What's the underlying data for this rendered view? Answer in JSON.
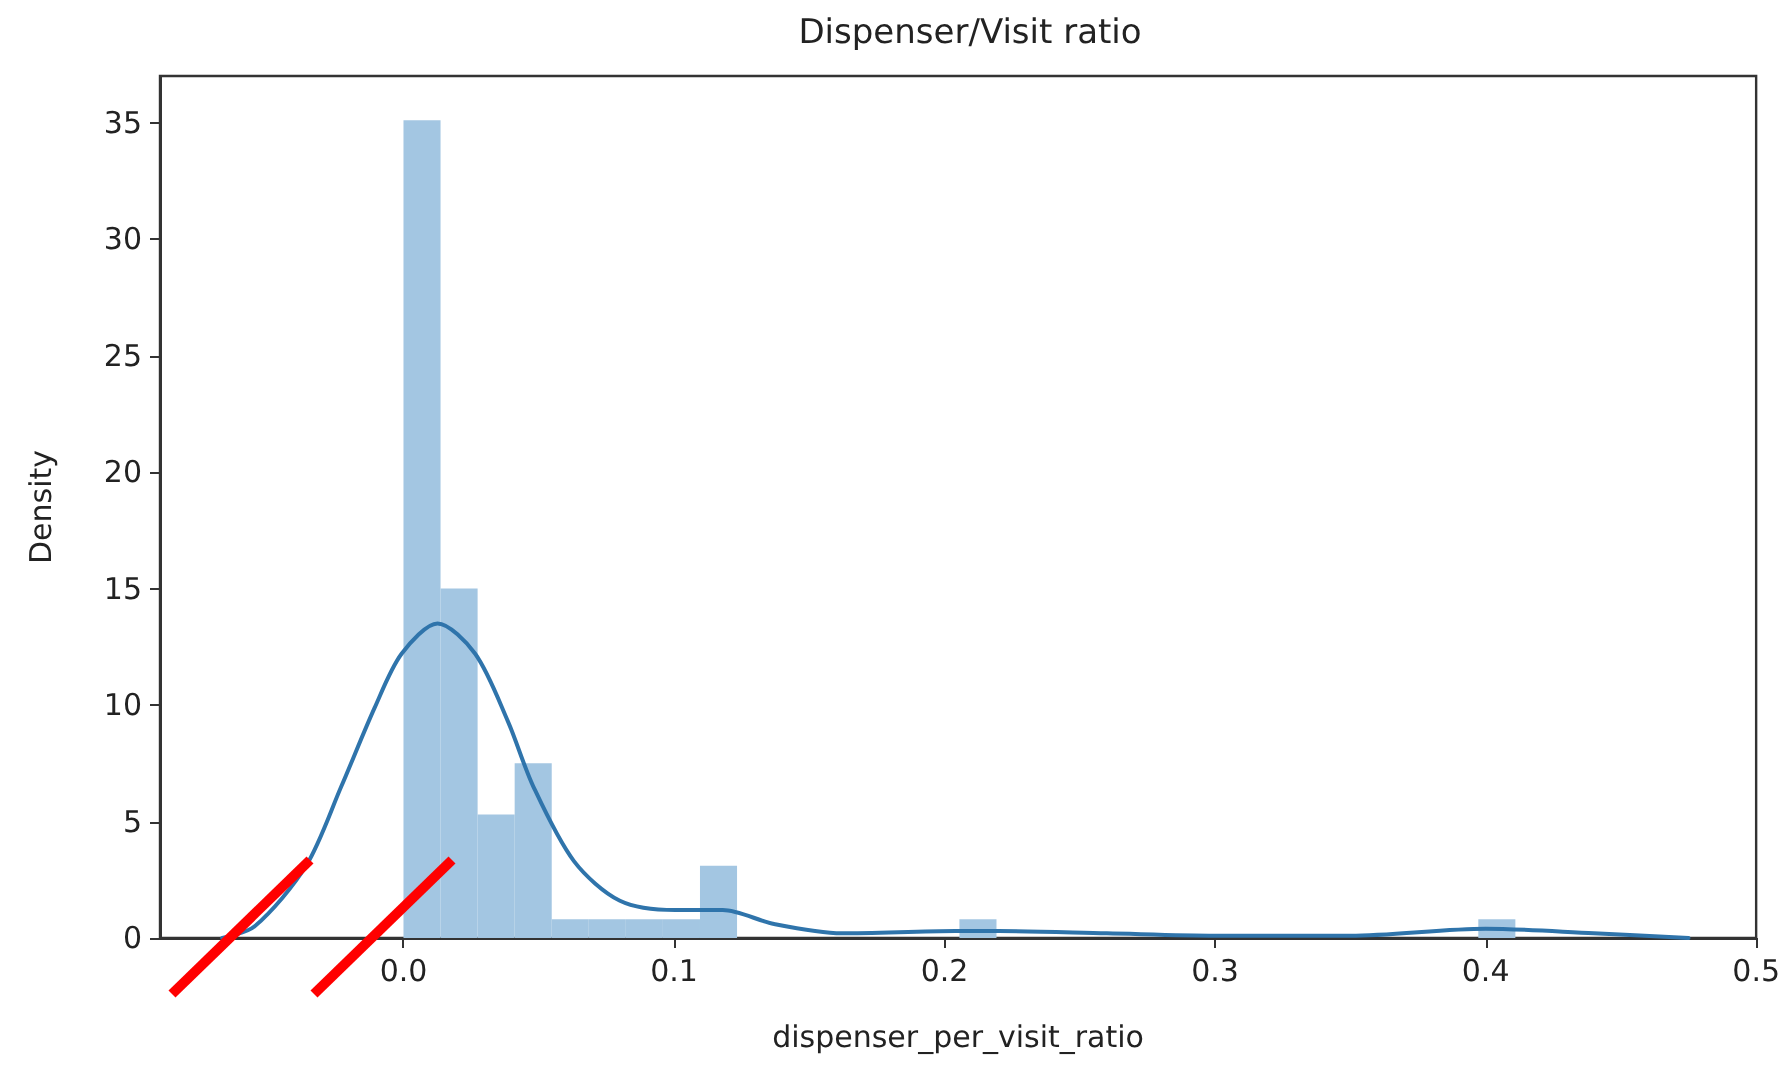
{
  "chart_data": {
    "type": "histogram",
    "title": "Dispenser/Visit ratio",
    "xlabel": "dispenser_per_visit_ratio",
    "ylabel": "Density",
    "xlim": [
      -0.09,
      0.5
    ],
    "xticks": [
      {
        "value": 0,
        "label": "0.0"
      },
      0.1,
      0.2,
      0.3,
      0.4,
      0.5
    ],
    "ylim": [
      0,
      37
    ],
    "yticks": [
      0,
      5,
      10,
      15,
      20,
      25,
      30,
      35
    ],
    "grid": false,
    "series": [
      {
        "color": "#a3c6e2",
        "bins": [
          0,
          0.0137,
          0.0274,
          0.0411,
          0.0548,
          0.0685,
          0.0822,
          0.0959,
          0.1096,
          0.1233,
          0.137,
          0.1507,
          0.1644,
          0.1781,
          0.1918,
          0.2055,
          0.2192,
          0.2329,
          0.2466,
          0.2603,
          0.274,
          0.2877,
          0.3014,
          0.3151,
          0.3288,
          0.3425,
          0.3562,
          0.3699,
          0.3836,
          0.3973,
          0.411
        ],
        "values": [
          35.1,
          15,
          5.3,
          7.5,
          0.8,
          0.8,
          0.8,
          0.8,
          3.1,
          0,
          0,
          0,
          0,
          0,
          0,
          0.8,
          0,
          0,
          0,
          0,
          0,
          0,
          0,
          0,
          0,
          0,
          0,
          0,
          0,
          0.8
        ]
      },
      {
        "type": "line",
        "color": "#2f74ab",
        "marker": "none",
        "line_style": "solid",
        "x": [
          -0.067,
          -0.055,
          -0.036,
          -0.023,
          -0.0106,
          -0.0007,
          0.0126,
          0.0265,
          0.0386,
          0.048,
          0.063,
          0.08,
          0.1005,
          0.118,
          0.137,
          0.162,
          0.204,
          0.22,
          0.26,
          0.3,
          0.35,
          0.4,
          0.44,
          0.475
        ],
        "values": [
          0,
          0.5,
          3.1,
          6.5,
          9.9,
          12.2,
          13.5,
          12.2,
          9.3,
          6.5,
          3.3,
          1.6,
          1.2,
          1.2,
          0.6,
          0.2,
          0.3,
          0.3,
          0.2,
          0.1,
          0.1,
          0.4,
          0.2,
          0
        ]
      }
    ]
  }
}
